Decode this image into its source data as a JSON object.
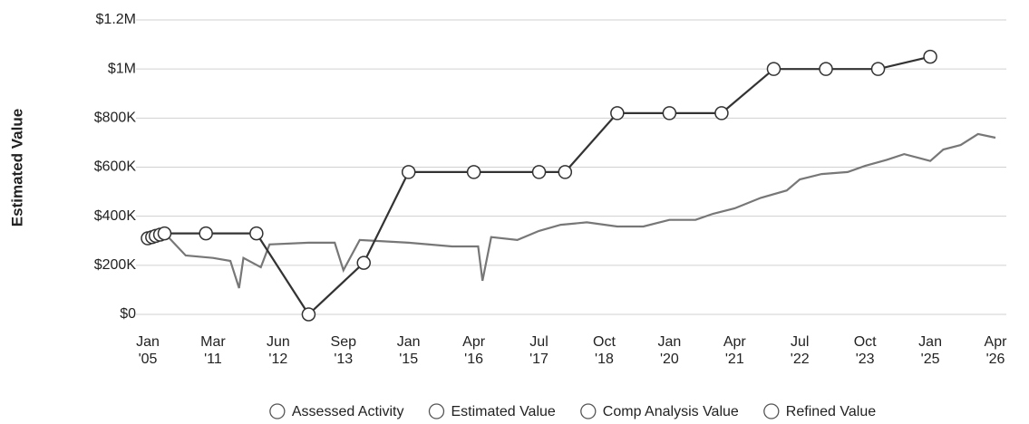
{
  "chart_data": {
    "type": "line",
    "y_label": "Estimated Value",
    "ylim": [
      0,
      1200000
    ],
    "yticks": [
      {
        "value": 0,
        "label": "$0"
      },
      {
        "value": 200000,
        "label": "$200K"
      },
      {
        "value": 400000,
        "label": "$400K"
      },
      {
        "value": 600000,
        "label": "$600K"
      },
      {
        "value": 800000,
        "label": "$800K"
      },
      {
        "value": 1000000,
        "label": "$1M"
      },
      {
        "value": 1200000,
        "label": "$1.2M"
      }
    ],
    "xticks": [
      {
        "value": "2005-01",
        "label": "Jan '05"
      },
      {
        "value": "2011-03",
        "label": "Mar '11"
      },
      {
        "value": "2012-06",
        "label": "Jun '12"
      },
      {
        "value": "2013-09",
        "label": "Sep '13"
      },
      {
        "value": "2015-01",
        "label": "Jan '15"
      },
      {
        "value": "2016-04",
        "label": "Apr '16"
      },
      {
        "value": "2017-07",
        "label": "Jul '17"
      },
      {
        "value": "2018-10",
        "label": "Oct '18"
      },
      {
        "value": "2020-01",
        "label": "Jan '20"
      },
      {
        "value": "2021-04",
        "label": "Apr '21"
      },
      {
        "value": "2022-07",
        "label": "Jul '22"
      },
      {
        "value": "2023-10",
        "label": "Oct '23"
      },
      {
        "value": "2025-01",
        "label": "Jan '25"
      },
      {
        "value": "2026-04",
        "label": "Apr '26"
      }
    ],
    "grid": true,
    "legend": "bottom",
    "series": [
      {
        "name": "Assessed Activity",
        "color": "#555555",
        "markers": true,
        "x": [],
        "values": []
      },
      {
        "name": "Estimated Value",
        "color": "#777777",
        "markers": false,
        "x": [
          "2006-09",
          "2008-08",
          "2011-03",
          "2011-07",
          "2011-09",
          "2011-10",
          "2012-02",
          "2012-04",
          "2013-01",
          "2013-07",
          "2013-09",
          "2014-01",
          "2015-01",
          "2015-11",
          "2016-05",
          "2016-06",
          "2016-08",
          "2017-02",
          "2017-07",
          "2017-12",
          "2018-06",
          "2019-01",
          "2019-07",
          "2020-01",
          "2020-07",
          "2020-11",
          "2021-04",
          "2021-10",
          "2022-04",
          "2022-07",
          "2022-12",
          "2023-06",
          "2023-10",
          "2024-03",
          "2024-07",
          "2025-01",
          "2025-04",
          "2025-08",
          "2025-12",
          "2026-04"
        ],
        "values": [
          328000,
          240000,
          230000,
          218000,
          107000,
          230000,
          192000,
          285000,
          292000,
          292000,
          180000,
          303000,
          292000,
          277000,
          277000,
          137000,
          315000,
          303000,
          340000,
          365000,
          375000,
          358000,
          358000,
          385000,
          385000,
          410000,
          432000,
          475000,
          505000,
          550000,
          572000,
          580000,
          605000,
          630000,
          653000,
          625000,
          672000,
          690000,
          735000,
          720000
        ]
      },
      {
        "name": "Comp Analysis Value",
        "color": "#999999",
        "markers": true,
        "x": [],
        "values": []
      },
      {
        "name": "Refined Value",
        "color": "#333333",
        "markers": true,
        "x": [
          "2005-01",
          "2005-06",
          "2005-10",
          "2006-03",
          "2006-08",
          "2010-07",
          "2012-01",
          "2013-01",
          "2014-02",
          "2015-01",
          "2016-04",
          "2017-07",
          "2018-01",
          "2019-01",
          "2020-01",
          "2021-01",
          "2022-01",
          "2023-01",
          "2024-01",
          "2025-01"
        ],
        "values": [
          310000,
          315000,
          320000,
          325000,
          330000,
          330000,
          330000,
          0,
          210000,
          580000,
          580000,
          580000,
          580000,
          820000,
          820000,
          820000,
          1000000,
          1000000,
          1000000,
          1050000
        ]
      }
    ]
  }
}
